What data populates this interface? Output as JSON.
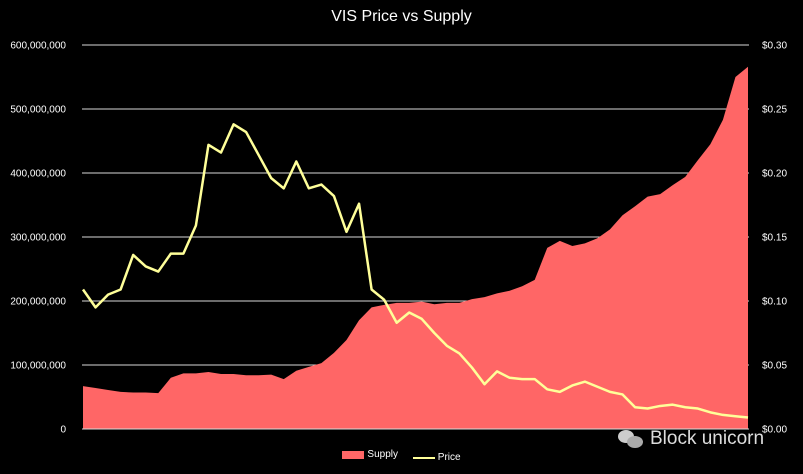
{
  "chart_data": {
    "type": "area+line",
    "title": "VIS Price vs Supply",
    "left_axis": {
      "ylim": [
        0,
        600000000
      ],
      "ticks": [
        "0",
        "100,000,000",
        "200,000,000",
        "300,000,000",
        "400,000,000",
        "500,000,000",
        "600,000,000"
      ]
    },
    "right_axis": {
      "ylim": [
        0,
        0.3
      ],
      "ticks": [
        "$0.00",
        "$0.05",
        "$0.10",
        "$0.15",
        "$0.20",
        "$0.25",
        "$0.30"
      ]
    },
    "grid": true,
    "legend": "bottom",
    "series": [
      {
        "name": "Supply",
        "type": "area",
        "axis": "left",
        "color": "#ff6666",
        "unit": "millions",
        "values": [
          67,
          64,
          61,
          58,
          57,
          57,
          56,
          80,
          87,
          87,
          89,
          86,
          86,
          84,
          84,
          85,
          78,
          91,
          97,
          103,
          119,
          139,
          170,
          190,
          194,
          197,
          197,
          199,
          195,
          197,
          197,
          203,
          206,
          212,
          216,
          223,
          233,
          283,
          294,
          286,
          290,
          298,
          312,
          334,
          348,
          363,
          367,
          381,
          394,
          420,
          445,
          483,
          550,
          566
        ]
      },
      {
        "name": "Price",
        "type": "line",
        "axis": "right",
        "color": "#ffff99",
        "values": [
          0.109,
          0.095,
          0.105,
          0.109,
          0.136,
          0.127,
          0.123,
          0.137,
          0.137,
          0.159,
          0.222,
          0.216,
          0.238,
          0.232,
          0.214,
          0.196,
          0.188,
          0.209,
          0.188,
          0.191,
          0.182,
          0.154,
          0.176,
          0.109,
          0.101,
          0.083,
          0.091,
          0.086,
          0.075,
          0.065,
          0.059,
          0.048,
          0.035,
          0.045,
          0.04,
          0.039,
          0.039,
          0.031,
          0.029,
          0.034,
          0.037,
          0.033,
          0.029,
          0.027,
          0.017,
          0.016,
          0.018,
          0.019,
          0.017,
          0.016,
          0.013,
          0.011,
          0.01,
          0.009
        ]
      }
    ]
  },
  "watermark": {
    "text": "Block unicorn",
    "icon": "wechat-icon"
  }
}
